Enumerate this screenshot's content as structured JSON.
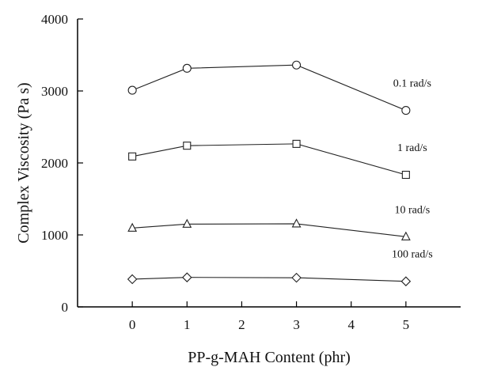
{
  "chart_data": {
    "type": "line",
    "xlabel": "PP-g-MAH Content (phr)",
    "ylabel": "Complex Viscosity (Pa s)",
    "xlim": [
      -1,
      6
    ],
    "ylim": [
      0,
      4000
    ],
    "xticks": [
      0,
      1,
      2,
      3,
      4,
      5
    ],
    "yticks": [
      0,
      1000,
      2000,
      3000,
      4000
    ],
    "x": [
      0,
      1,
      3,
      5
    ],
    "grid": false,
    "series": [
      {
        "name": "0.1 rad/s",
        "marker": "circle",
        "values": [
          3010,
          3315,
          3360,
          2730
        ]
      },
      {
        "name": "1 rad/s",
        "marker": "square",
        "values": [
          2090,
          2240,
          2265,
          1835
        ]
      },
      {
        "name": "10 rad/s",
        "marker": "triangle",
        "values": [
          1095,
          1150,
          1155,
          975
        ]
      },
      {
        "name": "100 rad/s",
        "marker": "diamond",
        "values": [
          385,
          410,
          405,
          355
        ]
      }
    ],
    "colors": {
      "line": "#222222",
      "axis": "#000000"
    }
  }
}
